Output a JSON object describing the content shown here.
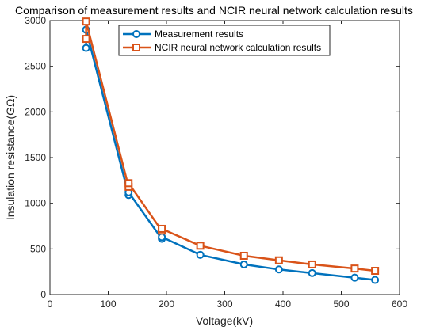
{
  "chart_data": {
    "type": "line",
    "title": "Comparison of measurement results and NCIR neural network calculation results",
    "xlabel": "Voltage(kV)",
    "ylabel": "Insulation resistance(GΩ)",
    "xlim": [
      0,
      600
    ],
    "ylim": [
      0,
      3000
    ],
    "xticks": [
      "0",
      "100",
      "200",
      "300",
      "400",
      "500",
      "600"
    ],
    "yticks": [
      "0",
      "500",
      "1000",
      "1500",
      "2000",
      "2500",
      "3000"
    ],
    "grid": false,
    "legend_position": "top-center",
    "series": [
      {
        "name": "Measurement results",
        "color": "#0072BD",
        "marker": "circle",
        "points": [
          [
            62,
            2700
          ],
          [
            62,
            2900
          ],
          [
            135,
            1090
          ],
          [
            135,
            1120
          ],
          [
            192,
            610
          ],
          [
            192,
            630
          ],
          [
            258,
            435
          ],
          [
            333,
            330
          ],
          [
            393,
            275
          ],
          [
            450,
            235
          ],
          [
            523,
            185
          ],
          [
            558,
            160
          ]
        ]
      },
      {
        "name": "NCIR neural network calculation results",
        "color": "#D95319",
        "marker": "square",
        "points": [
          [
            62,
            2800
          ],
          [
            62,
            2990
          ],
          [
            135,
            1180
          ],
          [
            135,
            1220
          ],
          [
            192,
            700
          ],
          [
            192,
            720
          ],
          [
            258,
            535
          ],
          [
            333,
            425
          ],
          [
            393,
            375
          ],
          [
            450,
            330
          ],
          [
            523,
            285
          ],
          [
            558,
            260
          ]
        ]
      }
    ]
  }
}
